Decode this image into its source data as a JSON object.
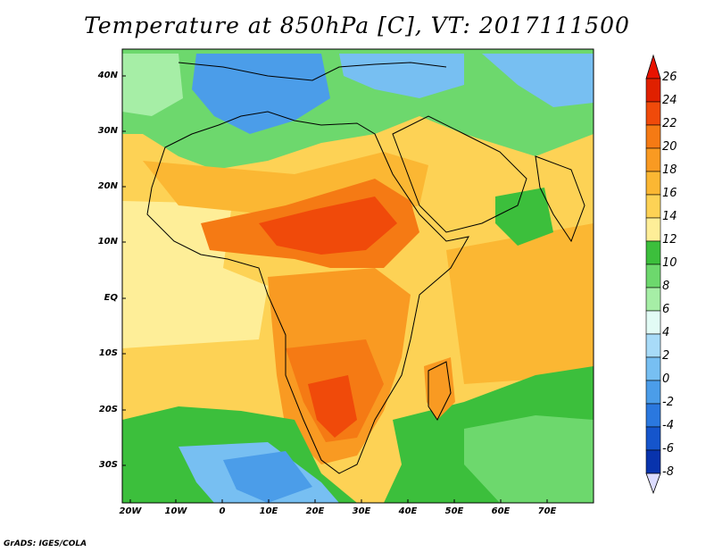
{
  "title": "Temperature at 850hPa [C], VT: 2017111500",
  "credit": "GrADS: IGES/COLA",
  "map": {
    "variable": "Temperature at 850hPa",
    "units": "C",
    "valid_time": "2017111500",
    "lon_range": [
      -22,
      80
    ],
    "lat_range": [
      -36,
      46
    ],
    "x_ticks": [
      "20W",
      "10W",
      "0",
      "10E",
      "20E",
      "30E",
      "40E",
      "50E",
      "60E",
      "70E"
    ],
    "y_ticks": [
      "40N",
      "30N",
      "20N",
      "10N",
      "EQ",
      "10S",
      "20S",
      "30S"
    ]
  },
  "colorbar": {
    "labels": [
      "26",
      "24",
      "22",
      "20",
      "18",
      "16",
      "14",
      "12",
      "10",
      "8",
      "6",
      "4",
      "2",
      "0",
      "-2",
      "-4",
      "-6",
      "-8"
    ],
    "colors": [
      "#e02000",
      "#f04a0a",
      "#f57a14",
      "#f99a22",
      "#fbb733",
      "#fdd255",
      "#feee98",
      "#3cbf3c",
      "#6dd86d",
      "#a6eea6",
      "#e2fbf5",
      "#a8dbf8",
      "#77bff2",
      "#4b9de9",
      "#2a78df",
      "#1555cc",
      "#0833ad",
      "#0c0c70"
    ],
    "top_triangle": "#e81200",
    "bottom_triangle": "#dcdcff"
  }
}
